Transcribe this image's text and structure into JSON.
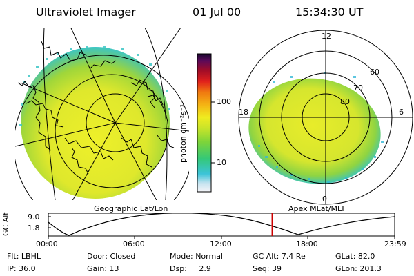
{
  "header": {
    "title": "Ultraviolet Imager",
    "date": "01 Jul 00",
    "time": "15:34:30 UT"
  },
  "colorbar": {
    "unit_label": "photon cm⁻²s⁻¹",
    "ticks": [
      "100",
      "10"
    ]
  },
  "left_panel": {
    "caption": "Geographic Lat/Lon"
  },
  "right_panel": {
    "caption": "Apex MLat/MLT",
    "mlt_labels": [
      "12",
      "18",
      "6",
      "0"
    ],
    "mlat_labels": [
      "60",
      "70",
      "80"
    ]
  },
  "timeline": {
    "ylabel": "GC Alt",
    "ytick_top": "9.0",
    "ytick_bottom": "1.8",
    "xticks": [
      "00:00",
      "06:00",
      "12:00",
      "18:00",
      "23:59"
    ],
    "current_time_fraction": 0.646
  },
  "status": {
    "row1": [
      {
        "label": "Flt:",
        "value": "LBHL"
      },
      {
        "label": "Door:",
        "value": "Closed"
      },
      {
        "label": "Mode:",
        "value": "Normal"
      },
      {
        "label": "GC Alt:",
        "value": "7.4 Re"
      },
      {
        "label": "GLat:",
        "value": "82.0"
      }
    ],
    "row2": [
      {
        "label": "IP:",
        "value": "36.0"
      },
      {
        "label": "Gain:",
        "value": "13"
      },
      {
        "label": "Dsp:",
        "value": "2.9"
      },
      {
        "label": "Seq:",
        "value": "39"
      },
      {
        "label": "GLon:",
        "value": "201.3"
      }
    ]
  },
  "colors": {
    "aurora_core": "#e4ec28",
    "aurora_mid": "#a6dc32",
    "aurora_edge": "#2fc8c8",
    "marker": "#cc0000"
  }
}
